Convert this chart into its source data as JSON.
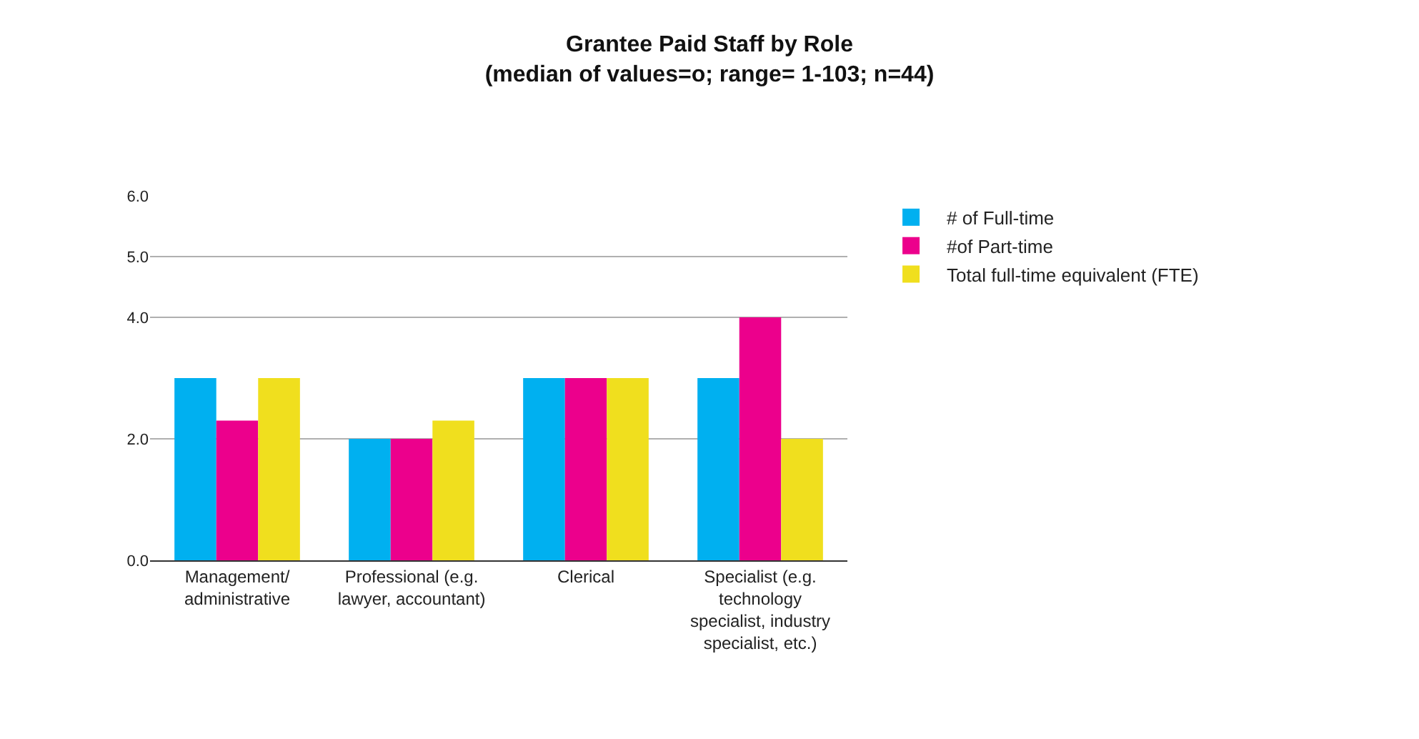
{
  "chart_data": {
    "type": "bar",
    "title": "Grantee Paid Staff by Role",
    "subtitle": "(median of values=o; range= 1-103; n=44)",
    "categories": [
      "Management/ administrative",
      "Professional (e.g. lawyer, accountant)",
      "Clerical",
      "Specialist (e.g. technology specialist, industry specialist, etc.)"
    ],
    "series": [
      {
        "name": "# of Full-time",
        "color": "#00b0f0",
        "values": [
          3.0,
          2.0,
          3.0,
          3.0
        ]
      },
      {
        "name": "#of Part-time",
        "color": "#ec008c",
        "values": [
          2.3,
          2.0,
          3.0,
          4.0
        ]
      },
      {
        "name": "Total full-time equivalent (FTE)",
        "color": "#f0df1e",
        "values": [
          3.0,
          2.3,
          3.0,
          2.0
        ]
      }
    ],
    "ylim": [
      0,
      6
    ],
    "yticks": [
      {
        "value": 0,
        "label": "0.0"
      },
      {
        "value": 2,
        "label": "2.0"
      },
      {
        "value": 4,
        "label": "4.0"
      },
      {
        "value": 5,
        "label": "5.0"
      },
      {
        "value": 6,
        "label": "6.0"
      }
    ],
    "grid": "y",
    "legend": "right"
  }
}
